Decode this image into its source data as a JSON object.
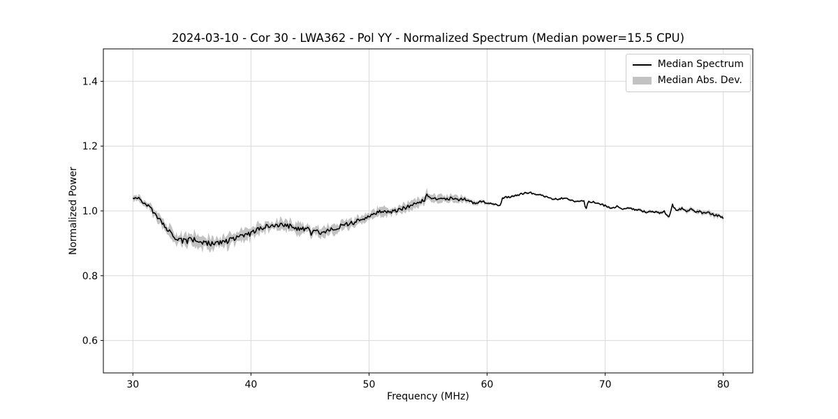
{
  "chart_data": {
    "type": "line",
    "title": "2024-03-10 - Cor 30 - LWA362 - Pol YY - Normalized Spectrum (Median power=15.5 CPU)",
    "xlabel": "Frequency (MHz)",
    "ylabel": "Normalized Power",
    "xlim": [
      27.5,
      82.5
    ],
    "ylim": [
      0.5,
      1.5
    ],
    "xticks": [
      30,
      40,
      50,
      60,
      70,
      80
    ],
    "yticks": [
      0.6,
      0.8,
      1.0,
      1.2,
      1.4
    ],
    "grid": true,
    "legend": {
      "position": "upper right",
      "items": [
        {
          "label": "Median Spectrum",
          "type": "line",
          "color": "#000000"
        },
        {
          "label": "Median Abs. Dev.",
          "type": "patch",
          "color": "#c2c2c2"
        }
      ]
    },
    "style": {
      "grid_color": "#d9d9d9",
      "spine_color": "#000000",
      "line_color": "#000000",
      "band_color": "#c2c2c2",
      "background": "#ffffff"
    },
    "noise": {
      "seed": 20240310,
      "step_mhz": 0.1,
      "line_amp_frac": 0.5,
      "line_amp_min": 0.003,
      "mad_amp_frac": 0.5
    },
    "series": [
      {
        "name": "Median Spectrum",
        "type": "line",
        "color": "#000000",
        "x": [
          30,
          30.5,
          31,
          31.5,
          32,
          32.5,
          33,
          33.5,
          34,
          34.5,
          35,
          35.5,
          36,
          36.5,
          37,
          37.5,
          38,
          38.5,
          39,
          39.5,
          40,
          40.5,
          41,
          41.5,
          42,
          42.5,
          43,
          43.5,
          44,
          44.5,
          44.9,
          45.1,
          45.3,
          45.8,
          46.3,
          46.8,
          47.3,
          47.8,
          48.3,
          48.8,
          49.3,
          49.8,
          50.3,
          50.8,
          51.3,
          51.8,
          52.3,
          52.8,
          53.3,
          53.8,
          54.3,
          54.7,
          54.9,
          55.1,
          55.5,
          56,
          56.5,
          57,
          57.5,
          58,
          58.5,
          59,
          59.5,
          60,
          60.5,
          61.1,
          61.3,
          62,
          62.5,
          63,
          63.5,
          64,
          64.5,
          65,
          65.5,
          66,
          66.5,
          67,
          67.5,
          68,
          68.2,
          68.35,
          68.6,
          69,
          69.5,
          70,
          70.5,
          71,
          71.5,
          72,
          72.5,
          73,
          73.5,
          74,
          74.5,
          75,
          75.4,
          75.7,
          76,
          76.5,
          77,
          77.3,
          77.7,
          78,
          78.3,
          78.7,
          79,
          79.5,
          80
        ],
        "y": [
          1.04,
          1.038,
          1.024,
          1.007,
          0.986,
          0.963,
          0.941,
          0.922,
          0.91,
          0.906,
          0.911,
          0.905,
          0.902,
          0.9,
          0.898,
          0.903,
          0.908,
          0.912,
          0.918,
          0.924,
          0.93,
          0.94,
          0.95,
          0.955,
          0.957,
          0.956,
          0.955,
          0.951,
          0.946,
          0.944,
          0.947,
          0.918,
          0.941,
          0.934,
          0.932,
          0.943,
          0.95,
          0.956,
          0.96,
          0.965,
          0.972,
          0.983,
          0.991,
          0.996,
          1.0,
          0.997,
          1.002,
          1.007,
          1.012,
          1.02,
          1.028,
          1.033,
          1.05,
          1.039,
          1.036,
          1.038,
          1.034,
          1.041,
          1.034,
          1.038,
          1.028,
          1.024,
          1.03,
          1.025,
          1.021,
          1.016,
          1.04,
          1.044,
          1.049,
          1.053,
          1.057,
          1.054,
          1.049,
          1.044,
          1.038,
          1.035,
          1.04,
          1.034,
          1.029,
          1.033,
          1.031,
          1.004,
          1.03,
          1.027,
          1.021,
          1.016,
          1.01,
          1.013,
          1.007,
          1.01,
          1.004,
          1.002,
          0.996,
          1.0,
          0.994,
          0.998,
          0.981,
          1.018,
          1.0,
          1.008,
          0.998,
          1.006,
          0.996,
          1.0,
          0.992,
          0.998,
          0.99,
          0.986,
          0.979
        ]
      },
      {
        "name": "Median Abs. Dev.",
        "type": "band",
        "color": "#c2c2c2",
        "half_width": [
          0.008,
          0.009,
          0.01,
          0.011,
          0.012,
          0.013,
          0.015,
          0.016,
          0.017,
          0.018,
          0.018,
          0.018,
          0.018,
          0.018,
          0.018,
          0.018,
          0.018,
          0.017,
          0.017,
          0.017,
          0.017,
          0.016,
          0.016,
          0.015,
          0.015,
          0.015,
          0.015,
          0.015,
          0.015,
          0.015,
          0.014,
          0.014,
          0.014,
          0.015,
          0.015,
          0.014,
          0.014,
          0.013,
          0.013,
          0.013,
          0.013,
          0.012,
          0.012,
          0.012,
          0.012,
          0.012,
          0.012,
          0.012,
          0.012,
          0.012,
          0.012,
          0.012,
          0.013,
          0.012,
          0.011,
          0.01,
          0.01,
          0.009,
          0.009,
          0.008,
          0.007,
          0.006,
          0.006,
          0.005,
          0.004,
          0.004,
          0.003,
          0.003,
          0.003,
          0.003,
          0.003,
          0.003,
          0.003,
          0.003,
          0.003,
          0.003,
          0.003,
          0.003,
          0.003,
          0.003,
          0.003,
          0.003,
          0.003,
          0.003,
          0.003,
          0.003,
          0.003,
          0.003,
          0.003,
          0.003,
          0.003,
          0.004,
          0.004,
          0.004,
          0.004,
          0.005,
          0.005,
          0.005,
          0.005,
          0.005,
          0.006,
          0.006,
          0.006,
          0.006,
          0.006,
          0.006,
          0.007,
          0.007,
          0.007
        ]
      }
    ]
  }
}
